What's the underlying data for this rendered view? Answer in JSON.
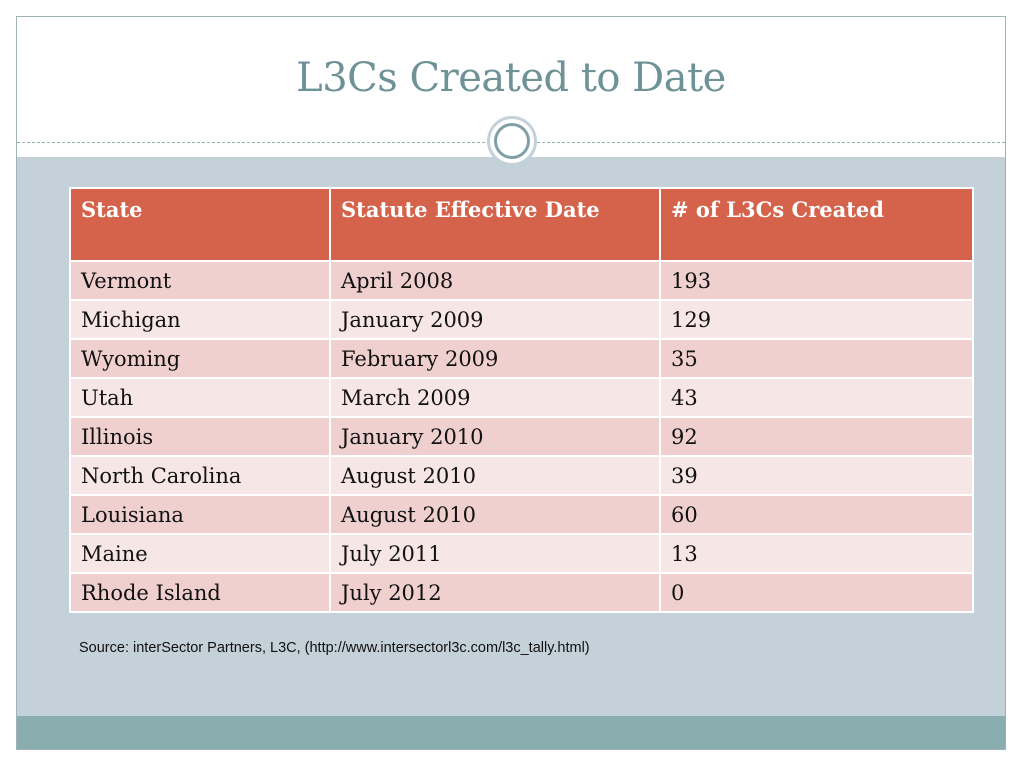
{
  "title": "L3Cs Created to Date",
  "table": {
    "headers": [
      "State",
      "Statute Effective Date",
      "# of L3Cs Created"
    ],
    "rows": [
      [
        "Vermont",
        "April 2008",
        "193"
      ],
      [
        "Michigan",
        "January 2009",
        "129"
      ],
      [
        "Wyoming",
        "February 2009",
        "35"
      ],
      [
        "Utah",
        "March 2009",
        "43"
      ],
      [
        "Illinois",
        "January 2010",
        "92"
      ],
      [
        "North Carolina",
        "August 2010",
        "39"
      ],
      [
        "Louisiana",
        "August 2010",
        "60"
      ],
      [
        "Maine",
        "July 2011",
        "13"
      ],
      [
        "Rhode Island",
        "July 2012",
        "0"
      ]
    ]
  },
  "source": "Source: interSector Partners, L3C, (http://www.intersectorl3c.com/l3c_tally.html)",
  "colors": {
    "title": "#6e9397",
    "header_fill": "#d5624b",
    "row_odd": "#efd0cf",
    "row_even": "#f7e6e6",
    "body_background": "#c4d1d8",
    "footer_bar": "#8aadb0"
  }
}
